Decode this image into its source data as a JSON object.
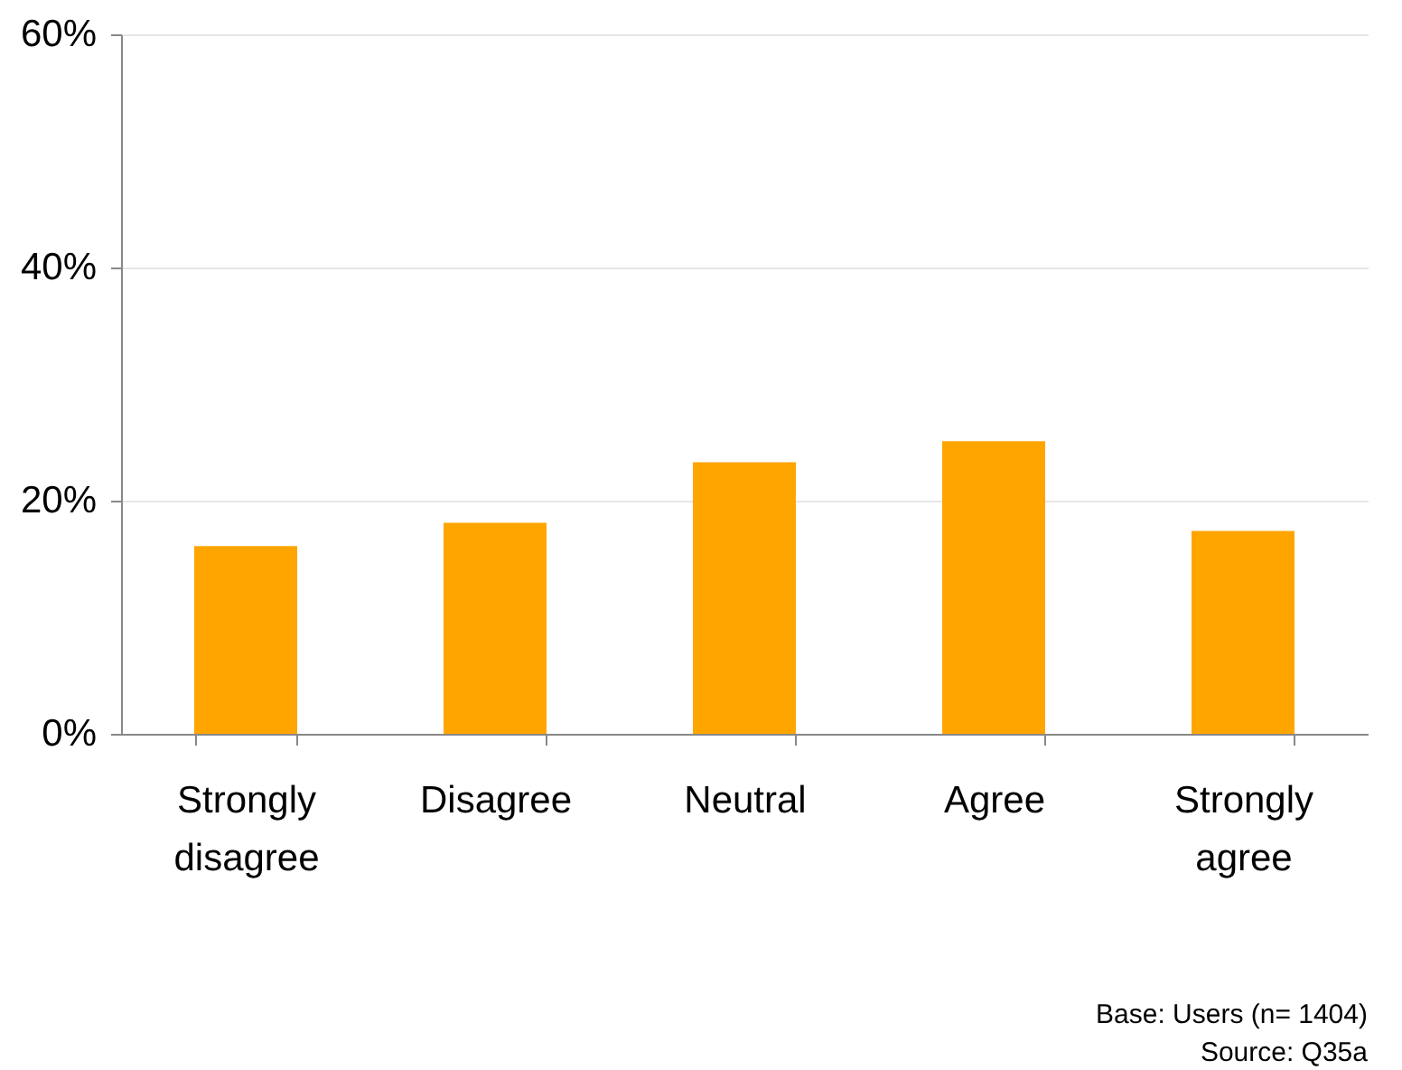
{
  "chart_data": {
    "type": "bar",
    "categories": [
      "Strongly disagree",
      "Disagree",
      "Neutral",
      "Agree",
      "Strongly agree"
    ],
    "values": [
      16.1,
      18.1,
      23.3,
      25.1,
      17.4
    ],
    "color": "#ffa500",
    "ylim": [
      0,
      60
    ],
    "yticks": [
      {
        "value": 0,
        "label": "0%"
      },
      {
        "value": 20,
        "label": "20%"
      },
      {
        "value": 40,
        "label": "40%"
      },
      {
        "value": 60,
        "label": "60%"
      }
    ],
    "grid": "y",
    "annotations": [
      "Base: Users (n= 1404)",
      "Source: Q35a"
    ]
  }
}
